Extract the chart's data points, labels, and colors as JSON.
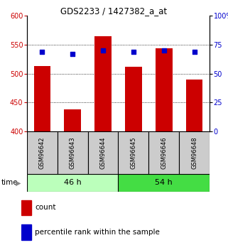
{
  "title": "GDS2233 / 1427382_a_at",
  "samples": [
    "GSM96642",
    "GSM96643",
    "GSM96644",
    "GSM96645",
    "GSM96646",
    "GSM96648"
  ],
  "bar_values": [
    513,
    438,
    565,
    512,
    543,
    489
  ],
  "percentile_values": [
    69,
    67,
    70,
    69,
    70,
    69
  ],
  "bar_color": "#cc0000",
  "percentile_color": "#0000cc",
  "ylim_left": [
    400,
    600
  ],
  "ylim_right": [
    0,
    100
  ],
  "yticks_left": [
    400,
    450,
    500,
    550,
    600
  ],
  "yticks_right": [
    0,
    25,
    50,
    75,
    100
  ],
  "ytick_labels_right": [
    "0",
    "25",
    "50",
    "75",
    "100%"
  ],
  "group1_label": "46 h",
  "group2_label": "54 h",
  "group1_color": "#bbffbb",
  "group2_color": "#44dd44",
  "label_bg_color": "#cccccc",
  "tick_label_color_left": "#cc0000",
  "tick_label_color_right": "#0000cc",
  "legend_count": "count",
  "legend_percentile": "percentile rank within the sample"
}
